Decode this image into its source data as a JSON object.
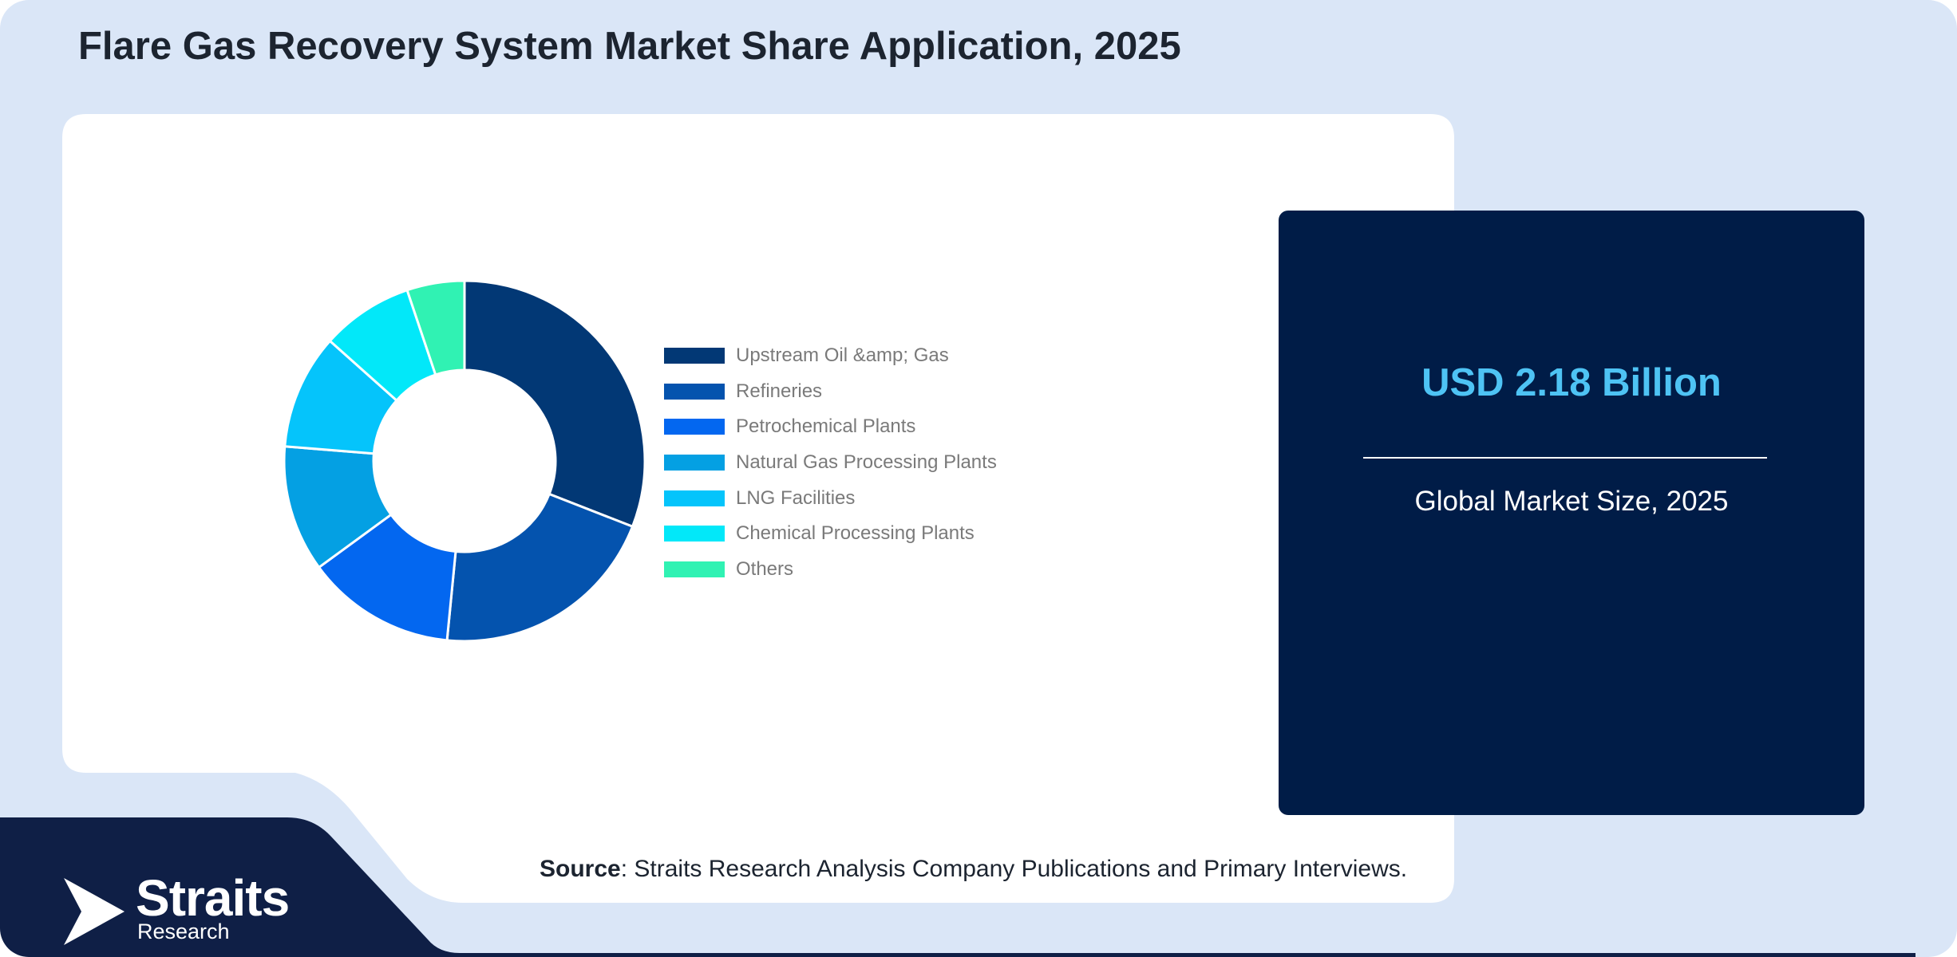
{
  "header": {
    "title": "Flare Gas Recovery System Market Share Application, 2025"
  },
  "chart_data": {
    "type": "pie",
    "donut": true,
    "categories": [
      "Upstream Oil &amp; Gas",
      "Refineries",
      "Petrochemical Plants",
      "Natural Gas Processing Plants",
      "LNG Facilities",
      "Chemical Processing Plants",
      "Others"
    ],
    "values": [
      30,
      20,
      13,
      11,
      10,
      8,
      5
    ],
    "colors": [
      "#023875",
      "#0453ae",
      "#0367f0",
      "#04a0e3",
      "#05c4fb",
      "#02e8f9",
      "#30f2b3"
    ],
    "legend_position": "right"
  },
  "stat": {
    "value": "USD 2.18 Billion",
    "caption": "Global Market Size, 2025"
  },
  "footer": {
    "source_label": "Source",
    "source_text": ": Straits Research Analysis Company Publications and Primary Interviews."
  },
  "logo": {
    "name": "Straits",
    "sub": "Research"
  }
}
